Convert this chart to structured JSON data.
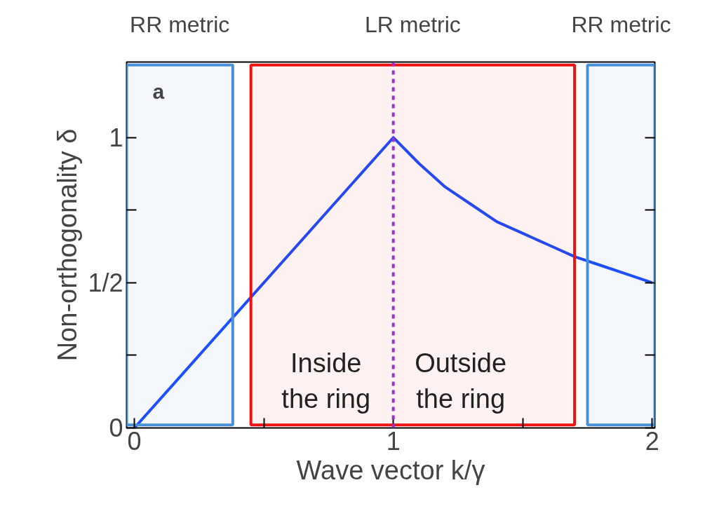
{
  "chart_data": {
    "type": "line",
    "xlabel": "Wave vector k/γ",
    "ylabel": "Non-orthogonality δ",
    "x": [
      0,
      1,
      1.1,
      1.2,
      1.3,
      1.4,
      1.5,
      1.6,
      1.7,
      1.8,
      1.9,
      2
    ],
    "series": [
      {
        "color": "#1a4cff",
        "values": [
          0,
          1,
          0.91,
          0.83,
          0.77,
          0.71,
          0.67,
          0.63,
          0.59,
          0.56,
          0.53,
          0.5
        ]
      }
    ],
    "xlim": [
      -0.03,
      2.01
    ],
    "ylim": [
      0,
      1.26
    ],
    "xticks": [
      0,
      {
        "value": 0.5,
        "label": null
      },
      1,
      {
        "value": 1.5,
        "label": null
      },
      2
    ],
    "yticks": [
      0,
      {
        "value": 0.25,
        "label": null
      },
      {
        "value": 0.5,
        "label": "1/2"
      },
      {
        "value": 0.75,
        "label": null
      },
      1
    ],
    "grid": false,
    "marker": "none",
    "line_style": "solid",
    "ref_lines": [
      {
        "axis": "x",
        "value": 1,
        "color": "#9933cc",
        "line_style": "dashed"
      }
    ],
    "bands": [
      {
        "axis": "x",
        "from": -0.03,
        "to": 0.38,
        "label": "RR metric",
        "color": "#4a90d9"
      },
      {
        "axis": "x",
        "from": 0.45,
        "to": 1.7,
        "label": "LR metric",
        "color": "#ee1111"
      },
      {
        "axis": "x",
        "from": 1.75,
        "to": 2.01,
        "label": "RR metric",
        "color": "#4a90d9"
      }
    ],
    "annotations": [
      "a",
      "Inside\nthe ring",
      "Outside\nthe ring"
    ]
  }
}
